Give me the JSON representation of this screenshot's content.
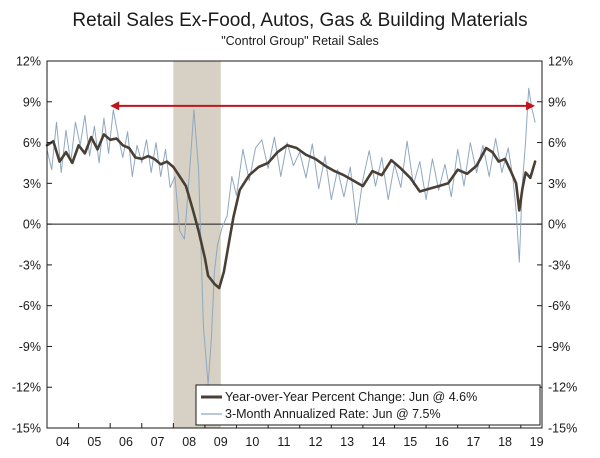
{
  "chart_data": {
    "type": "line",
    "title": "Retail Sales Ex-Food, Autos, Gas & Building Materials",
    "subtitle": "\"Control Group\" Retail Sales",
    "x_tick_labels": [
      "04",
      "05",
      "06",
      "07",
      "08",
      "09",
      "10",
      "11",
      "12",
      "13",
      "14",
      "15",
      "16",
      "17",
      "18",
      "19"
    ],
    "y_tick_labels_left": [
      "12%",
      "9%",
      "6%",
      "3%",
      "0%",
      "-3%",
      "-6%",
      "-9%",
      "-12%",
      "-15%"
    ],
    "y_tick_labels_right": [
      "12%",
      "9%",
      "6%",
      "3%",
      "0%",
      "-3%",
      "-6%",
      "-9%",
      "-12%",
      "-15%"
    ],
    "ylim": [
      -15,
      12
    ],
    "xlim": [
      2004.0,
      2019.67
    ],
    "recession": [
      2008.0,
      2009.5
    ],
    "arrow": {
      "from": 2006.0,
      "to": 2019.45,
      "y": 8.7,
      "color": "#c0151b"
    },
    "colors": {
      "yoy": "#4a3f35",
      "ann": "#8fa8c0",
      "recession": "#d6d1c4"
    },
    "legend": {
      "placement": "bottom-right",
      "entries": [
        "Year-over-Year Percent Change: Jun @ 4.6%",
        "3-Month Annualized Rate: Jun @ 7.5%"
      ]
    },
    "series": [
      {
        "name": "Year-over-Year Percent Change: Jun @ 4.6%",
        "x": [
          2004.0,
          2004.2,
          2004.4,
          2004.6,
          2004.8,
          2005.0,
          2005.2,
          2005.4,
          2005.6,
          2005.8,
          2006.0,
          2006.2,
          2006.4,
          2006.6,
          2006.8,
          2007.0,
          2007.2,
          2007.4,
          2007.6,
          2007.8,
          2008.0,
          2008.2,
          2008.4,
          2008.6,
          2008.8,
          2009.0,
          2009.1,
          2009.2,
          2009.3,
          2009.45,
          2009.6,
          2009.75,
          2009.9,
          2010.1,
          2010.4,
          2010.7,
          2011.0,
          2011.3,
          2011.6,
          2011.9,
          2012.2,
          2012.5,
          2012.8,
          2013.1,
          2013.4,
          2013.7,
          2014.0,
          2014.3,
          2014.6,
          2014.9,
          2015.2,
          2015.5,
          2015.8,
          2016.1,
          2016.4,
          2016.7,
          2017.0,
          2017.3,
          2017.6,
          2017.9,
          2018.1,
          2018.3,
          2018.5,
          2018.7,
          2018.85,
          2018.95,
          2019.05,
          2019.15,
          2019.3,
          2019.45
        ],
        "values": [
          5.8,
          6.1,
          4.6,
          5.3,
          4.5,
          5.8,
          5.2,
          6.4,
          5.5,
          6.6,
          6.2,
          6.3,
          5.8,
          5.6,
          4.9,
          4.8,
          5.0,
          4.8,
          4.4,
          4.6,
          4.2,
          3.5,
          2.8,
          1.2,
          -0.5,
          -2.5,
          -3.8,
          -4.1,
          -4.4,
          -4.7,
          -3.5,
          -1.5,
          0.5,
          2.5,
          3.6,
          4.2,
          4.5,
          5.3,
          5.8,
          5.6,
          5.1,
          4.8,
          4.3,
          3.9,
          3.6,
          3.2,
          2.8,
          3.9,
          3.6,
          4.7,
          4.1,
          3.4,
          2.4,
          2.6,
          2.8,
          3.0,
          4.0,
          3.7,
          4.3,
          5.6,
          5.3,
          4.6,
          4.8,
          3.8,
          3.0,
          1.0,
          2.6,
          3.8,
          3.4,
          4.6
        ]
      },
      {
        "name": "3-Month Annualized Rate: Jun @ 7.5%",
        "x": [
          2004.0,
          2004.15,
          2004.3,
          2004.45,
          2004.6,
          2004.75,
          2004.9,
          2005.05,
          2005.2,
          2005.35,
          2005.5,
          2005.65,
          2005.8,
          2005.95,
          2006.1,
          2006.25,
          2006.4,
          2006.55,
          2006.7,
          2006.85,
          2007.0,
          2007.15,
          2007.3,
          2007.45,
          2007.6,
          2007.75,
          2007.9,
          2008.05,
          2008.2,
          2008.35,
          2008.5,
          2008.65,
          2008.8,
          2008.95,
          2009.1,
          2009.2,
          2009.3,
          2009.4,
          2009.55,
          2009.7,
          2009.85,
          2010.0,
          2010.2,
          2010.4,
          2010.6,
          2010.8,
          2011.0,
          2011.2,
          2011.4,
          2011.6,
          2011.8,
          2012.0,
          2012.2,
          2012.4,
          2012.6,
          2012.8,
          2013.0,
          2013.2,
          2013.4,
          2013.6,
          2013.8,
          2014.0,
          2014.2,
          2014.4,
          2014.6,
          2014.8,
          2015.0,
          2015.2,
          2015.4,
          2015.6,
          2015.8,
          2016.0,
          2016.2,
          2016.4,
          2016.6,
          2016.8,
          2017.0,
          2017.2,
          2017.4,
          2017.6,
          2017.8,
          2018.0,
          2018.2,
          2018.4,
          2018.6,
          2018.75,
          2018.85,
          2018.95,
          2019.05,
          2019.15,
          2019.25,
          2019.35,
          2019.45
        ],
        "values": [
          5.5,
          4.0,
          7.5,
          3.8,
          6.9,
          4.5,
          7.5,
          5.8,
          8.0,
          5.0,
          7.2,
          4.5,
          7.8,
          5.2,
          8.4,
          6.5,
          4.9,
          6.8,
          3.5,
          5.8,
          4.5,
          6.2,
          3.8,
          6.0,
          3.5,
          5.5,
          2.7,
          3.5,
          -0.5,
          -1.1,
          3.5,
          8.4,
          4.0,
          -7.5,
          -11.8,
          -8.5,
          -3.5,
          -1.5,
          -0.2,
          0.6,
          3.5,
          2.1,
          5.5,
          3.2,
          5.6,
          6.2,
          4.1,
          6.4,
          3.5,
          6.0,
          4.3,
          5.3,
          3.4,
          5.9,
          2.6,
          5.0,
          1.8,
          4.0,
          2.0,
          4.2,
          0.0,
          3.3,
          5.4,
          2.8,
          4.9,
          1.8,
          4.4,
          2.7,
          6.1,
          2.9,
          4.6,
          1.8,
          4.8,
          2.5,
          4.4,
          2.0,
          5.5,
          2.8,
          6.0,
          3.8,
          5.8,
          3.5,
          6.3,
          3.8,
          5.6,
          3.4,
          1.0,
          -2.8,
          3.0,
          6.1,
          10.0,
          8.5,
          7.5
        ]
      }
    ]
  }
}
